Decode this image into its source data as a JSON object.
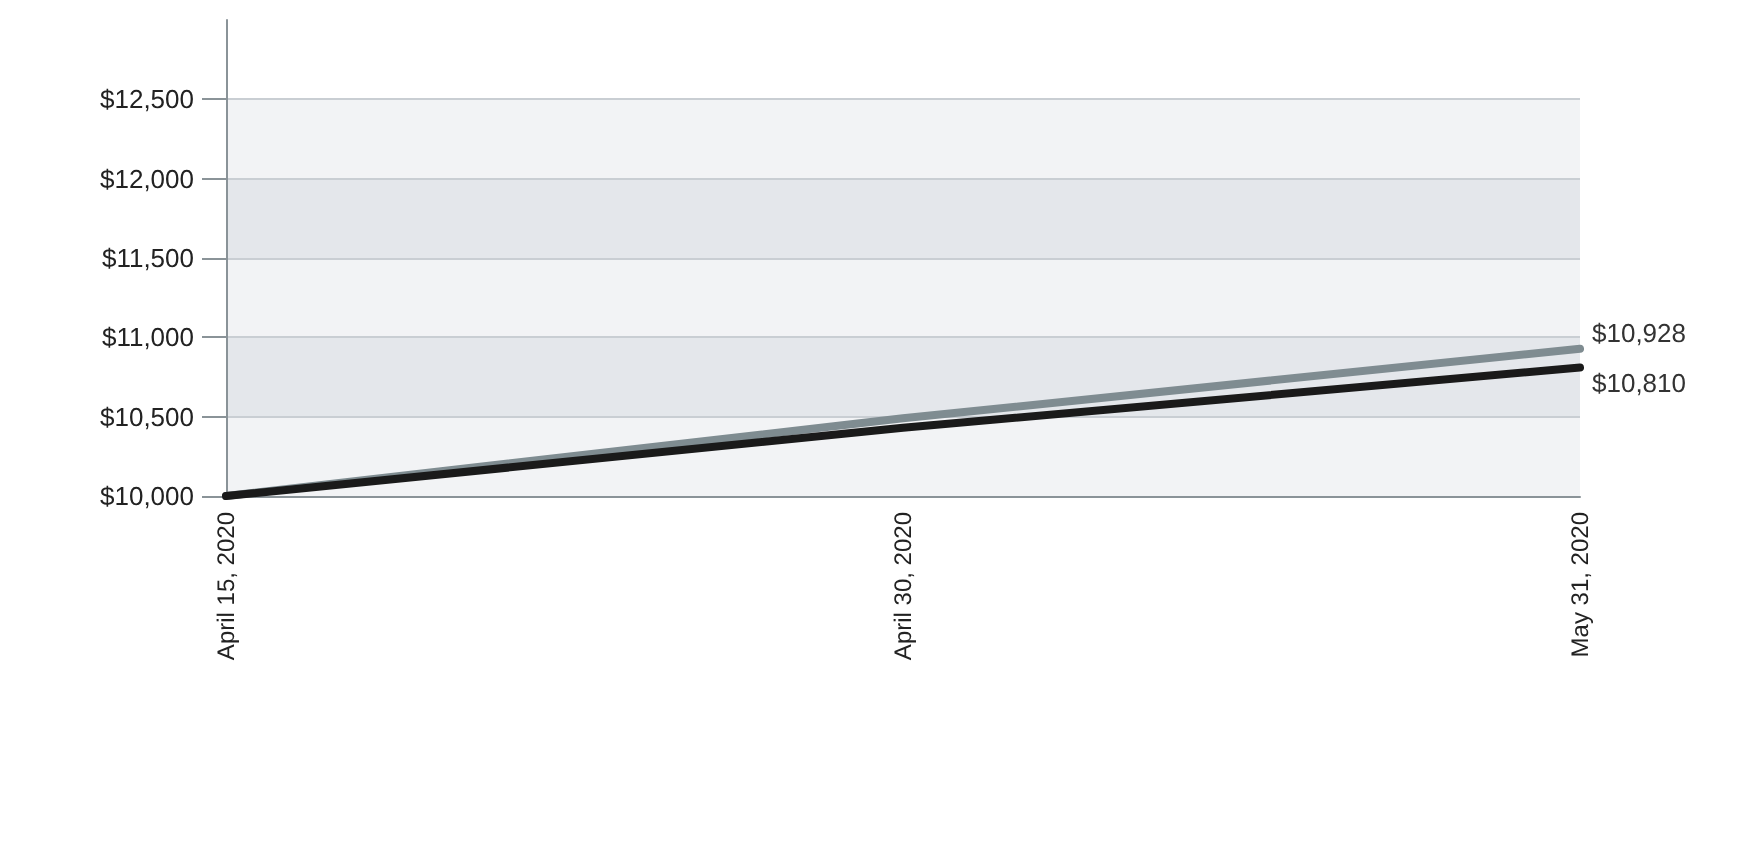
{
  "chart_data": {
    "type": "line",
    "categories": [
      "April 15, 2020",
      "April 30, 2020",
      "May 31, 2020"
    ],
    "series": [
      {
        "color": "#7f8c91",
        "values": [
          10000,
          10490,
          10928
        ],
        "value_labels": [
          null,
          null,
          "$10,928"
        ]
      },
      {
        "color": "#1a1a1a",
        "values": [
          10000,
          10430,
          10810
        ],
        "value_labels": [
          null,
          null,
          "$10,810"
        ]
      }
    ],
    "ylim": [
      10000,
      13000
    ],
    "yticks": [
      {
        "value": 10000,
        "label": "$10,000"
      },
      {
        "value": 10500,
        "label": "$10,500"
      },
      {
        "value": 11000,
        "label": "$11,000"
      },
      {
        "value": 11500,
        "label": "$11,500"
      },
      {
        "value": 12000,
        "label": "$12,000"
      },
      {
        "value": 12500,
        "label": "$12,500"
      }
    ],
    "grid": "y",
    "marker": "none",
    "line_style": "solid"
  }
}
